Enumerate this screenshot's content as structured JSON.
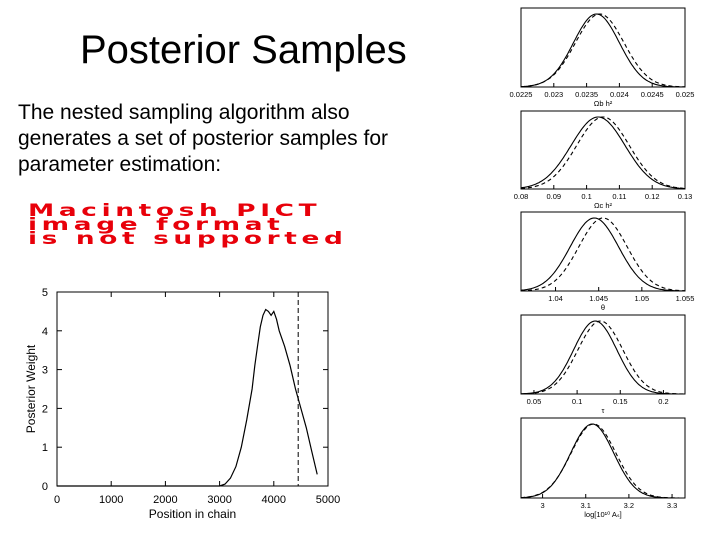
{
  "slide": {
    "title": "Posterior Samples",
    "body": "The nested sampling algorithm also generates a set of posterior samples for parameter estimation:",
    "pict_notice": [
      "Macintosh PICT",
      "image format",
      "is not supported"
    ]
  },
  "chart_data": [
    {
      "type": "line",
      "title": "",
      "xlabel": "Position in chain",
      "ylabel": "Posterior Weight",
      "xlim": [
        0,
        5000
      ],
      "ylim": [
        0,
        5
      ],
      "xticks": [
        "0",
        "1000",
        "2000",
        "3000",
        "4000",
        "5000"
      ],
      "yticks": [
        "0",
        "1",
        "2",
        "3",
        "4",
        "5"
      ],
      "vline_x": 4450,
      "series": [
        {
          "x": [
            0,
            2500,
            3000,
            3100,
            3200,
            3300,
            3400,
            3500,
            3600,
            3650,
            3700,
            3750,
            3800,
            3850,
            3900,
            3950,
            4000,
            4050,
            4100,
            4200,
            4300,
            4400,
            4500,
            4600,
            4700,
            4800
          ],
          "y": [
            0,
            0,
            0,
            0.05,
            0.2,
            0.5,
            1.0,
            1.7,
            2.5,
            3.1,
            3.6,
            4.1,
            4.4,
            4.55,
            4.5,
            4.4,
            4.5,
            4.3,
            4.0,
            3.6,
            3.1,
            2.5,
            2.0,
            1.5,
            0.9,
            0.3
          ]
        }
      ]
    },
    {
      "type": "line",
      "xlabel": "Ωb h²",
      "xticks": [
        "0.0225",
        "0.023",
        "0.0235",
        "0.024",
        "0.0245",
        "0.025"
      ],
      "xlim": [
        0.0225,
        0.025
      ],
      "ylim": [
        0,
        1
      ],
      "series": [
        {
          "style": "solid",
          "peak": 0.02365,
          "sigma": 0.00035
        },
        {
          "style": "dashed",
          "peak": 0.0237,
          "sigma": 0.00037
        }
      ]
    },
    {
      "type": "line",
      "xlabel": "Ωc h²",
      "xticks": [
        "0.08",
        "0.09",
        "0.1",
        "0.11",
        "0.12",
        "0.13"
      ],
      "xlim": [
        0.08,
        0.13
      ],
      "ylim": [
        0,
        1
      ],
      "series": [
        {
          "style": "solid",
          "peak": 0.1035,
          "sigma": 0.0082
        },
        {
          "style": "dashed",
          "peak": 0.105,
          "sigma": 0.008
        }
      ]
    },
    {
      "type": "line",
      "xlabel": "θ",
      "xticks": [
        "1.04",
        "1.045",
        "1.05",
        "1.055"
      ],
      "xlim": [
        1.036,
        1.055
      ],
      "ylim": [
        0,
        1
      ],
      "series": [
        {
          "style": "solid",
          "peak": 1.0445,
          "sigma": 0.0028
        },
        {
          "style": "dashed",
          "peak": 1.0455,
          "sigma": 0.0028
        }
      ]
    },
    {
      "type": "line",
      "xlabel": "τ",
      "xticks": [
        "0.05",
        "0.1",
        "0.15",
        "0.2"
      ],
      "xlim": [
        0.035,
        0.225
      ],
      "ylim": [
        0,
        1
      ],
      "series": [
        {
          "style": "solid",
          "peak": 0.121,
          "sigma": 0.025
        },
        {
          "style": "dashed",
          "peak": 0.127,
          "sigma": 0.026
        }
      ]
    },
    {
      "type": "line",
      "xlabel": "log[10¹⁰ Aₛ]",
      "xticks": [
        "3",
        "3.1",
        "3.2",
        "3.3"
      ],
      "xlim": [
        2.95,
        3.33
      ],
      "ylim": [
        0,
        1
      ],
      "series": [
        {
          "style": "solid",
          "peak": 3.115,
          "sigma": 0.05
        },
        {
          "style": "dashed",
          "peak": 3.118,
          "sigma": 0.052
        }
      ]
    }
  ]
}
